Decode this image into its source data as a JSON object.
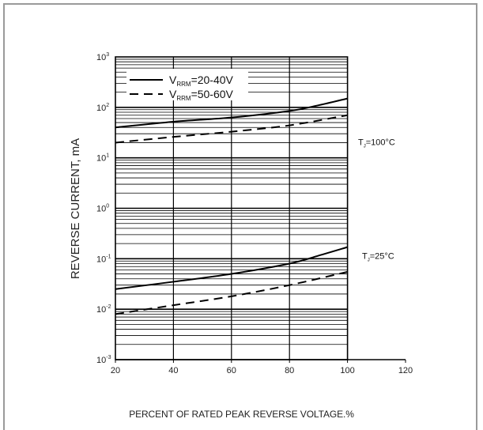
{
  "chart_data": {
    "type": "line",
    "title": "",
    "xlabel": "PERCENT OF RATED PEAK REVERSE VOLTAGE.%",
    "ylabel": "REVERSE CURRENT, mA",
    "xlim": [
      20,
      120
    ],
    "ylim": [
      0.001,
      1000
    ],
    "yscale": "log",
    "grid": true,
    "x_ticks": [
      "20",
      "40",
      "60",
      "80",
      "100",
      "120"
    ],
    "y_ticks": [
      {
        "base": "10",
        "exp": "-3"
      },
      {
        "base": "10",
        "exp": "-2"
      },
      {
        "base": "10",
        "exp": "-1"
      },
      {
        "base": "10",
        "exp": "0"
      },
      {
        "base": "10",
        "exp": "1"
      },
      {
        "base": "10",
        "exp": "2"
      },
      {
        "base": "10",
        "exp": "3"
      }
    ],
    "legend_position": "top-left",
    "legend": [
      {
        "prefix": "V",
        "sub": "RRM",
        "suffix": "=20-40V",
        "style": "solid"
      },
      {
        "prefix": "V",
        "sub": "RRM",
        "suffix": "=50-60V",
        "style": "dashed"
      }
    ],
    "annotations": [
      {
        "prefix": "T",
        "sub": "J",
        "suffix": "=100°C"
      },
      {
        "prefix": "T",
        "sub": "J",
        "suffix": "=25°C"
      }
    ],
    "series": [
      {
        "label": "V_RRM=20-40V, T_J=100°C",
        "style": "solid",
        "x": [
          20,
          40,
          60,
          80,
          90,
          100
        ],
        "y": [
          40,
          52,
          63,
          85,
          110,
          150
        ]
      },
      {
        "label": "V_RRM=50-60V, T_J=100°C",
        "style": "dashed",
        "x": [
          20,
          40,
          60,
          80,
          100
        ],
        "y": [
          20,
          26,
          33,
          44,
          70
        ]
      },
      {
        "label": "V_RRM=20-40V, T_J=25°C",
        "style": "solid",
        "x": [
          20,
          40,
          60,
          80,
          90,
          100
        ],
        "y": [
          0.025,
          0.035,
          0.05,
          0.08,
          0.115,
          0.17
        ]
      },
      {
        "label": "V_RRM=50-60V, T_J=25°C",
        "style": "dashed",
        "x": [
          20,
          40,
          60,
          80,
          100
        ],
        "y": [
          0.008,
          0.012,
          0.018,
          0.03,
          0.055
        ]
      }
    ]
  }
}
